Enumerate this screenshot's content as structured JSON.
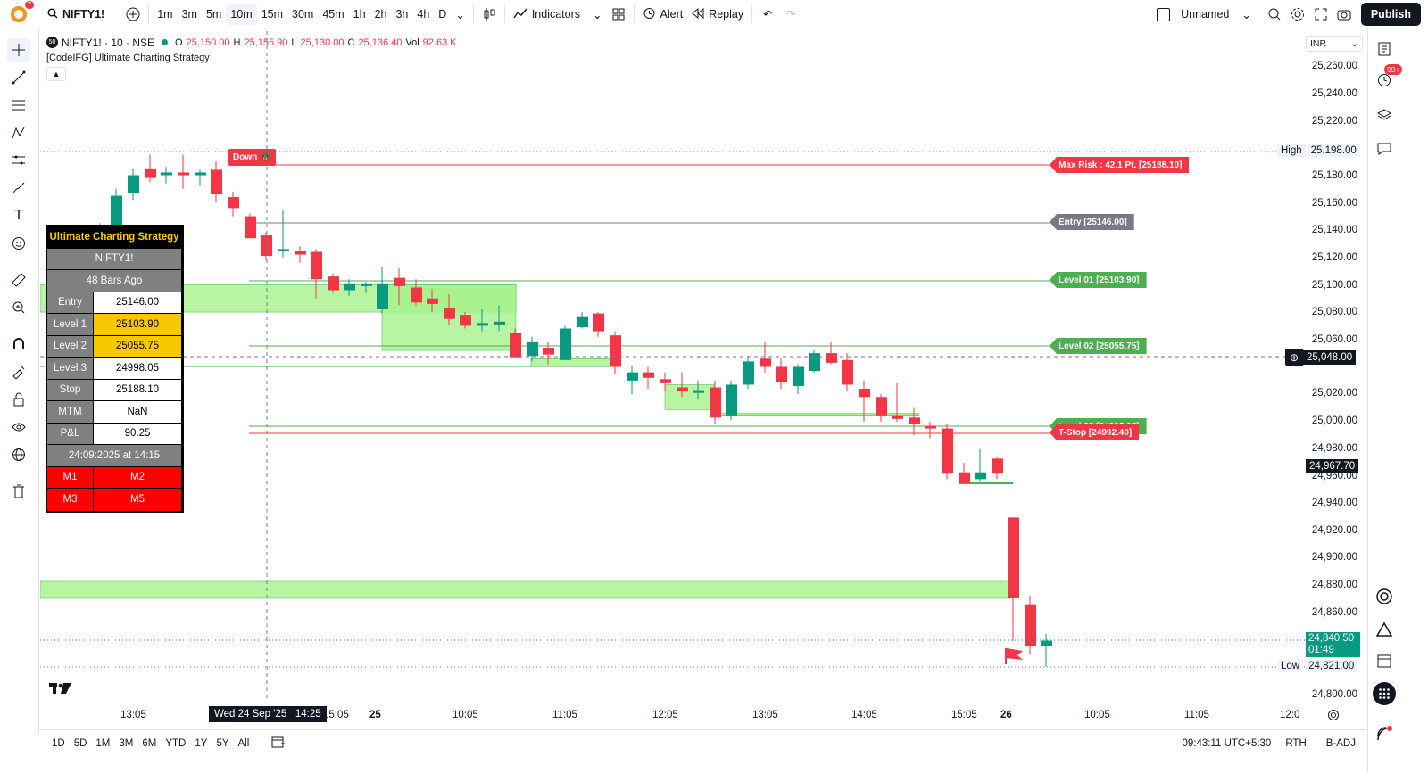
{
  "toolbar": {
    "notif_count": "7",
    "symbol": "NIFTY1!",
    "intervals": [
      "1m",
      "3m",
      "5m",
      "10m",
      "15m",
      "30m",
      "45m",
      "1h",
      "2h",
      "3h",
      "4h",
      "D"
    ],
    "active_interval": "10m",
    "indicators_label": "Indicators",
    "alert_label": "Alert",
    "replay_label": "Replay",
    "layout_name": "Unnamed",
    "publish_label": "Publish"
  },
  "legend": {
    "badge": "50",
    "title": "NIFTY1! · 10 · NSE",
    "o_label": "O",
    "o_value": "25,150.00",
    "h_label": "H",
    "h_value": "25,155.90",
    "l_label": "L",
    "l_value": "25,130.00",
    "c_label": "C",
    "c_value": "25,136.40",
    "vol_label": "Vol",
    "vol_value": "92.63 K",
    "strategy": "[CodeIFG] Ultimate Charting Strategy"
  },
  "currency": "INR",
  "price_axis": [
    "25,260.00",
    "25,240.00",
    "25,220.00",
    "25,198.00",
    "25,180.00",
    "25,160.00",
    "25,140.00",
    "25,120.00",
    "25,100.00",
    "25,080.00",
    "25,060.00",
    "25,048.00",
    "25,020.00",
    "25,000.00",
    "24,980.00",
    "24,967.70",
    "24,960.00",
    "24,940.00",
    "24,920.00",
    "24,900.00",
    "24,880.00",
    "24,860.00",
    "24,840.50",
    "24,821.00",
    "24,800.00"
  ],
  "price_labels": {
    "high_label": "High",
    "high_value": "25,198.00",
    "crosshair_value": "25,048.00",
    "last_close": "24,967.70",
    "current_value": "24,840.50",
    "countdown": "01:49",
    "low_label": "Low",
    "low_value": "24,821.00"
  },
  "lines": {
    "max_risk": "Max Risk : 42.1 Pt. [25188.10]",
    "entry": "Entry [25146.00]",
    "level01": "Level 01 [25103.90]",
    "level02": "Level 02 [25055.75]",
    "level03": "Level 03 [24998.05]",
    "tstop": "T-Stop [24992.40]",
    "down_tag": "Down"
  },
  "table": {
    "title": "Ultimate Charting Strategy",
    "symbol": "NIFTY1!",
    "bars_ago": "48 Bars Ago",
    "rows": [
      {
        "label": "Entry",
        "value": "25146.00"
      },
      {
        "label": "Level 1",
        "value": "25103.90"
      },
      {
        "label": "Level 2",
        "value": "25055.75"
      },
      {
        "label": "Level 3",
        "value": "24998.05"
      },
      {
        "label": "Stop",
        "value": "25188.10"
      },
      {
        "label": "MTM",
        "value": "NaN"
      },
      {
        "label": "P&L",
        "value": "90.25"
      }
    ],
    "date": "24:09:2025 at 14:15",
    "m1": "M1",
    "m2": "M2",
    "m3": "M3",
    "m5": "M5"
  },
  "time_axis": {
    "labels": [
      "13:05",
      "15:05",
      "25",
      "10:05",
      "11:05",
      "12:05",
      "13:05",
      "14:05",
      "15:05",
      "26",
      "10:05",
      "11:05",
      "12:0"
    ],
    "crosshair": "Wed 24 Sep '25   14:25"
  },
  "bottom": {
    "ranges": [
      "1D",
      "5D",
      "1M",
      "3M",
      "6M",
      "YTD",
      "1Y",
      "5Y",
      "All"
    ],
    "clock": "09:43:11 UTC+5:30",
    "session": "RTH",
    "adj": "B-ADJ"
  },
  "right_badge": "99+",
  "colors": {
    "up": "#089981",
    "down": "#f23645",
    "zone": "#a5f28b",
    "accent": "#2962ff"
  }
}
